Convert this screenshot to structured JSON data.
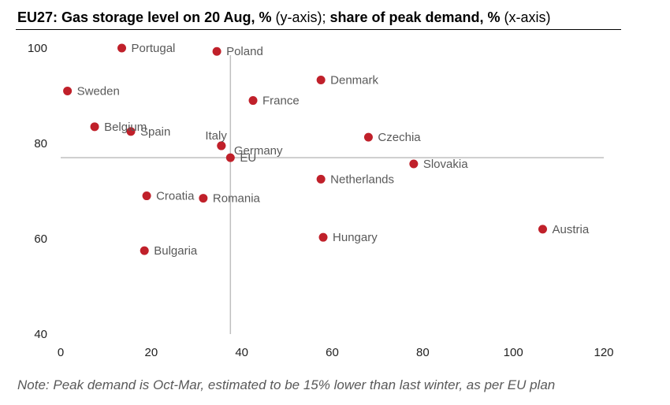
{
  "chart_data": {
    "type": "scatter",
    "title_bold": "EU27: Gas storage level on 20 Aug, %",
    "title_y": " (y-axis);",
    "title_bold2": " share of peak demand, %",
    "title_x": " (x-axis)",
    "note": "Note: Peak demand is Oct-Mar, estimated to be 15% lower than last winter, as per EU plan",
    "xlim": [
      0,
      120
    ],
    "ylim": [
      40,
      100
    ],
    "x_ticks": [
      "0",
      "20",
      "40",
      "60",
      "80",
      "100",
      "120"
    ],
    "y_ticks": [
      "40",
      "60",
      "80",
      "100"
    ],
    "reference_lines": {
      "x": 37.5,
      "y": 77
    },
    "point_color": "#c0202a",
    "label_color": "#595959",
    "axis_color": "#bfbfbf",
    "points": [
      {
        "label": "Portugal",
        "x": 13.5,
        "y": 100,
        "pos": "right"
      },
      {
        "label": "Poland",
        "x": 34.5,
        "y": 99.3,
        "pos": "right"
      },
      {
        "label": "Denmark",
        "x": 57.5,
        "y": 93.3,
        "pos": "right"
      },
      {
        "label": "Sweden",
        "x": 1.5,
        "y": 91,
        "pos": "right"
      },
      {
        "label": "France",
        "x": 42.5,
        "y": 89,
        "pos": "right"
      },
      {
        "label": "Belgium",
        "x": 7.5,
        "y": 83.5,
        "pos": "right"
      },
      {
        "label": "Spain",
        "x": 15.5,
        "y": 82.5,
        "pos": "right"
      },
      {
        "label": "Czechia",
        "x": 68,
        "y": 81.3,
        "pos": "right"
      },
      {
        "label": "Italy",
        "x": 35.5,
        "y": 79.5,
        "pos": "above-left"
      },
      {
        "label": "Germany",
        "x": 35.5,
        "y": 79.5,
        "pos": "right-low"
      },
      {
        "label": "EU",
        "x": 37.5,
        "y": 77,
        "pos": "right"
      },
      {
        "label": "Slovakia",
        "x": 78,
        "y": 75.7,
        "pos": "right"
      },
      {
        "label": "Netherlands",
        "x": 57.5,
        "y": 72.5,
        "pos": "right"
      },
      {
        "label": "Croatia",
        "x": 19,
        "y": 69,
        "pos": "right"
      },
      {
        "label": "Romania",
        "x": 31.5,
        "y": 68.5,
        "pos": "right"
      },
      {
        "label": "Austria",
        "x": 106.5,
        "y": 62,
        "pos": "right"
      },
      {
        "label": "Hungary",
        "x": 58,
        "y": 60.3,
        "pos": "right"
      },
      {
        "label": "Bulgaria",
        "x": 18.5,
        "y": 57.5,
        "pos": "right"
      }
    ]
  }
}
